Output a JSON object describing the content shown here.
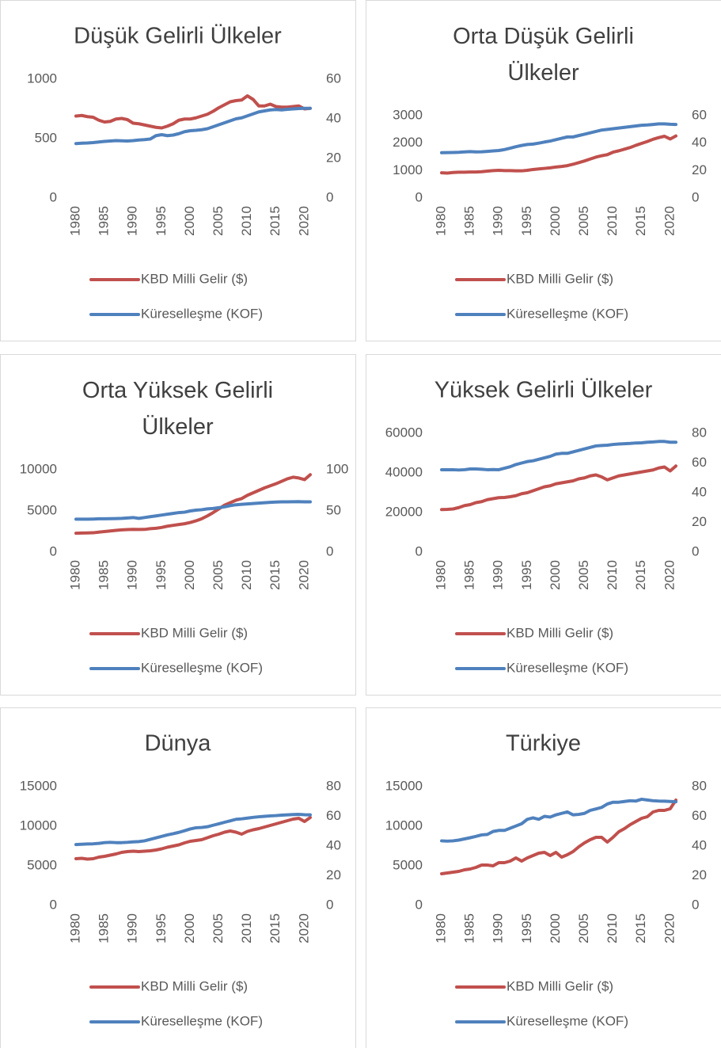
{
  "chart_data": [
    {
      "type": "line",
      "title": "Düşük Gelirli Ülkeler",
      "x": [
        1980,
        1981,
        1982,
        1983,
        1984,
        1985,
        1986,
        1987,
        1988,
        1989,
        1990,
        1991,
        1992,
        1993,
        1994,
        1995,
        1996,
        1997,
        1998,
        1999,
        2000,
        2001,
        2002,
        2003,
        2004,
        2005,
        2006,
        2007,
        2008,
        2009,
        2010,
        2011,
        2012,
        2013,
        2014,
        2015,
        2016,
        2017,
        2018,
        2019,
        2020,
        2021
      ],
      "xlim": [
        1980,
        2021
      ],
      "xticks": [
        1980,
        1985,
        1990,
        1995,
        2000,
        2005,
        2010,
        2015,
        2020
      ],
      "ylim": [
        0,
        1000
      ],
      "yticks": [
        0,
        500,
        1000
      ],
      "y2lim": [
        0,
        60
      ],
      "y2ticks": [
        0,
        20,
        40,
        60
      ],
      "series": [
        {
          "name": "KBD Milli Gelir ($)",
          "color": "#c0504d",
          "values": [
            690,
            695,
            685,
            680,
            655,
            640,
            645,
            665,
            670,
            660,
            630,
            625,
            615,
            605,
            595,
            590,
            605,
            625,
            655,
            665,
            665,
            675,
            690,
            705,
            730,
            760,
            785,
            810,
            820,
            825,
            860,
            830,
            775,
            775,
            790,
            770,
            765,
            765,
            770,
            775,
            750,
            755
          ]
        },
        {
          "name": "Küreselleşme (KOF)",
          "color": "#4f81bd",
          "axis": "y2",
          "values": [
            27.5,
            27.7,
            27.8,
            28,
            28.3,
            28.6,
            28.8,
            29,
            28.9,
            28.8,
            29,
            29.3,
            29.5,
            29.8,
            31.5,
            32,
            31.5,
            31.8,
            32.5,
            33.5,
            34,
            34.2,
            34.5,
            35,
            36,
            37,
            38,
            39,
            40,
            40.5,
            41.5,
            42.5,
            43.5,
            44,
            44.5,
            44.7,
            44.5,
            44.8,
            45,
            45.2,
            45.3,
            45.3
          ]
        }
      ]
    },
    {
      "type": "line",
      "title": "Orta Düşük Gelirli Ülkeler",
      "x": [
        1980,
        1981,
        1982,
        1983,
        1984,
        1985,
        1986,
        1987,
        1988,
        1989,
        1990,
        1991,
        1992,
        1993,
        1994,
        1995,
        1996,
        1997,
        1998,
        1999,
        2000,
        2001,
        2002,
        2003,
        2004,
        2005,
        2006,
        2007,
        2008,
        2009,
        2010,
        2011,
        2012,
        2013,
        2014,
        2015,
        2016,
        2017,
        2018,
        2019,
        2020,
        2021
      ],
      "xlim": [
        1980,
        2021
      ],
      "xticks": [
        1980,
        1985,
        1990,
        1995,
        2000,
        2005,
        2010,
        2015,
        2020
      ],
      "ylim": [
        0,
        3000
      ],
      "yticks": [
        0,
        1000,
        2000,
        3000
      ],
      "y2lim": [
        0,
        60
      ],
      "y2ticks": [
        0,
        20,
        40,
        60
      ],
      "series": [
        {
          "name": "KBD Milli Gelir ($)",
          "color": "#c0504d",
          "values": [
            920,
            910,
            930,
            940,
            940,
            950,
            950,
            960,
            980,
            1000,
            1010,
            1000,
            1000,
            990,
            990,
            1010,
            1040,
            1060,
            1080,
            1100,
            1130,
            1150,
            1180,
            1230,
            1290,
            1350,
            1420,
            1490,
            1540,
            1580,
            1670,
            1720,
            1780,
            1840,
            1920,
            1990,
            2060,
            2140,
            2200,
            2250,
            2150,
            2260
          ]
        },
        {
          "name": "Küreselleşme (KOF)",
          "color": "#4f81bd",
          "axis": "y2",
          "values": [
            33,
            33.1,
            33.2,
            33.3,
            33.6,
            33.8,
            33.6,
            33.7,
            34,
            34.3,
            34.6,
            35.3,
            36.3,
            37.4,
            38.3,
            39,
            39.3,
            40,
            40.8,
            41.5,
            42.5,
            43.5,
            44.5,
            44.5,
            45.5,
            46.5,
            47.5,
            48.5,
            49.5,
            50,
            50.5,
            51,
            51.5,
            52,
            52.5,
            53,
            53.2,
            53.6,
            54,
            54,
            53.7,
            53.6
          ]
        }
      ]
    },
    {
      "type": "line",
      "title": "Orta Yüksek Gelirli Ülkeler",
      "x": [
        1980,
        1981,
        1982,
        1983,
        1984,
        1985,
        1986,
        1987,
        1988,
        1989,
        1990,
        1991,
        1992,
        1993,
        1994,
        1995,
        1996,
        1997,
        1998,
        1999,
        2000,
        2001,
        2002,
        2003,
        2004,
        2005,
        2006,
        2007,
        2008,
        2009,
        2010,
        2011,
        2012,
        2013,
        2014,
        2015,
        2016,
        2017,
        2018,
        2019,
        2020,
        2021
      ],
      "xlim": [
        1980,
        2021
      ],
      "xticks": [
        1980,
        1985,
        1990,
        1995,
        2000,
        2005,
        2010,
        2015,
        2020
      ],
      "ylim": [
        0,
        10000
      ],
      "yticks": [
        0,
        5000,
        10000
      ],
      "y2lim": [
        0,
        100
      ],
      "y2ticks": [
        0,
        50,
        100
      ],
      "series": [
        {
          "name": "KBD Milli Gelir ($)",
          "color": "#c0504d",
          "values": [
            2300,
            2320,
            2330,
            2350,
            2430,
            2500,
            2570,
            2640,
            2700,
            2740,
            2760,
            2750,
            2760,
            2850,
            2900,
            3000,
            3150,
            3250,
            3350,
            3450,
            3600,
            3800,
            4050,
            4400,
            4800,
            5250,
            5700,
            6000,
            6300,
            6500,
            6900,
            7200,
            7500,
            7800,
            8050,
            8300,
            8600,
            8900,
            9100,
            9000,
            8800,
            9400
          ]
        },
        {
          "name": "Küreselleşme (KOF)",
          "color": "#4f81bd",
          "axis": "y2",
          "values": [
            40,
            40,
            40,
            40.2,
            40.5,
            40.5,
            40.6,
            40.8,
            41,
            41.5,
            42,
            41,
            42,
            43,
            44,
            45,
            46,
            47,
            48,
            48.5,
            50,
            51,
            51.5,
            52.5,
            53,
            54,
            55,
            56.5,
            57.5,
            58,
            58.5,
            59,
            59.5,
            60,
            60.5,
            60.8,
            61,
            61,
            61.2,
            61.3,
            61,
            61
          ]
        }
      ]
    },
    {
      "type": "line",
      "title": "Yüksek Gelirli Ülkeler",
      "x": [
        1980,
        1981,
        1982,
        1983,
        1984,
        1985,
        1986,
        1987,
        1988,
        1989,
        1990,
        1991,
        1992,
        1993,
        1994,
        1995,
        1996,
        1997,
        1998,
        1999,
        2000,
        2001,
        2002,
        2003,
        2004,
        2005,
        2006,
        2007,
        2008,
        2009,
        2010,
        2011,
        2012,
        2013,
        2014,
        2015,
        2016,
        2017,
        2018,
        2019,
        2020,
        2021
      ],
      "xlim": [
        1980,
        2021
      ],
      "xticks": [
        1980,
        1985,
        1990,
        1995,
        2000,
        2005,
        2010,
        2015,
        2020
      ],
      "ylim": [
        0,
        60000
      ],
      "yticks": [
        0,
        20000,
        40000,
        60000
      ],
      "y2lim": [
        0,
        80
      ],
      "y2ticks": [
        0,
        20,
        40,
        60,
        80
      ],
      "series": [
        {
          "name": "KBD Milli Gelir ($)",
          "color": "#c0504d",
          "values": [
            21500,
            21600,
            21800,
            22500,
            23500,
            24000,
            25000,
            25500,
            26500,
            27000,
            27500,
            27600,
            28000,
            28500,
            29500,
            30000,
            31000,
            32000,
            33000,
            33500,
            34500,
            35000,
            35500,
            36000,
            37000,
            37500,
            38500,
            39000,
            38000,
            36500,
            37500,
            38500,
            39000,
            39500,
            40000,
            40500,
            41000,
            41500,
            42500,
            43000,
            41000,
            43500
          ]
        },
        {
          "name": "Küreselleşme (KOF)",
          "color": "#4f81bd",
          "axis": "y2",
          "values": [
            55.5,
            55.5,
            55.5,
            55.3,
            55.5,
            56,
            56,
            55.8,
            55.5,
            55.6,
            55.5,
            56.5,
            57.5,
            59,
            60,
            61,
            61.5,
            62.5,
            63.5,
            64.5,
            66,
            66.5,
            66.5,
            67.5,
            68.5,
            69.5,
            70.5,
            71.5,
            71.8,
            72,
            72.5,
            72.8,
            73,
            73.2,
            73.5,
            73.6,
            74,
            74.2,
            74.5,
            74.5,
            74,
            74
          ]
        }
      ]
    },
    {
      "type": "line",
      "title": "Dünya",
      "x": [
        1980,
        1981,
        1982,
        1983,
        1984,
        1985,
        1986,
        1987,
        1988,
        1989,
        1990,
        1991,
        1992,
        1993,
        1994,
        1995,
        1996,
        1997,
        1998,
        1999,
        2000,
        2001,
        2002,
        2003,
        2004,
        2005,
        2006,
        2007,
        2008,
        2009,
        2010,
        2011,
        2012,
        2013,
        2014,
        2015,
        2016,
        2017,
        2018,
        2019,
        2020,
        2021
      ],
      "xlim": [
        1980,
        2021
      ],
      "xticks": [
        1980,
        1985,
        1990,
        1995,
        2000,
        2005,
        2010,
        2015,
        2020
      ],
      "ylim": [
        0,
        15000
      ],
      "yticks": [
        0,
        5000,
        10000,
        15000
      ],
      "y2lim": [
        0,
        80
      ],
      "y2ticks": [
        0,
        20,
        40,
        60,
        80
      ],
      "series": [
        {
          "name": "KBD Milli Gelir ($)",
          "color": "#c0504d",
          "values": [
            5900,
            5950,
            5850,
            5900,
            6100,
            6200,
            6350,
            6500,
            6700,
            6800,
            6850,
            6800,
            6850,
            6900,
            7000,
            7150,
            7350,
            7500,
            7650,
            7900,
            8100,
            8200,
            8300,
            8550,
            8800,
            9000,
            9250,
            9400,
            9250,
            9000,
            9350,
            9550,
            9700,
            9900,
            10100,
            10300,
            10500,
            10700,
            10900,
            11000,
            10600,
            11100
          ]
        },
        {
          "name": "Küreselleşme (KOF)",
          "color": "#4f81bd",
          "axis": "y2",
          "values": [
            41,
            41.2,
            41.4,
            41.5,
            41.8,
            42.3,
            42.5,
            42.3,
            42.3,
            42.5,
            42.8,
            43,
            43.5,
            44.5,
            45.5,
            46.5,
            47.5,
            48.3,
            49.2,
            50.3,
            51.5,
            52.3,
            52.5,
            53,
            54,
            55,
            56,
            57,
            58,
            58.3,
            58.8,
            59.3,
            59.7,
            60,
            60.3,
            60.5,
            60.8,
            61,
            61.2,
            61.3,
            61.1,
            61
          ]
        }
      ]
    },
    {
      "type": "line",
      "title": "Türkiye",
      "x": [
        1980,
        1981,
        1982,
        1983,
        1984,
        1985,
        1986,
        1987,
        1988,
        1989,
        1990,
        1991,
        1992,
        1993,
        1994,
        1995,
        1996,
        1997,
        1998,
        1999,
        2000,
        2001,
        2002,
        2003,
        2004,
        2005,
        2006,
        2007,
        2008,
        2009,
        2010,
        2011,
        2012,
        2013,
        2014,
        2015,
        2016,
        2017,
        2018,
        2019,
        2020,
        2021
      ],
      "xlim": [
        1980,
        2021
      ],
      "xticks": [
        1980,
        1985,
        1990,
        1995,
        2000,
        2005,
        2010,
        2015,
        2020
      ],
      "ylim": [
        0,
        15000
      ],
      "yticks": [
        0,
        5000,
        10000,
        15000
      ],
      "y2lim": [
        0,
        80
      ],
      "y2ticks": [
        0,
        20,
        40,
        60,
        80
      ],
      "series": [
        {
          "name": "KBD Milli Gelir ($)",
          "color": "#c0504d",
          "values": [
            4000,
            4100,
            4200,
            4300,
            4500,
            4600,
            4800,
            5100,
            5100,
            5000,
            5400,
            5400,
            5600,
            6000,
            5600,
            6000,
            6300,
            6600,
            6700,
            6300,
            6700,
            6100,
            6400,
            6800,
            7400,
            7900,
            8300,
            8600,
            8600,
            8000,
            8600,
            9300,
            9700,
            10200,
            10600,
            11000,
            11200,
            11800,
            12000,
            12000,
            12200,
            13300
          ]
        },
        {
          "name": "Küreselleşme (KOF)",
          "color": "#4f81bd",
          "axis": "y2",
          "values": [
            43.5,
            43.3,
            43.5,
            44,
            44.8,
            45.6,
            46.5,
            47.5,
            47.8,
            49.8,
            50.5,
            50.5,
            52,
            53.5,
            55,
            58,
            59,
            58,
            60,
            59.5,
            61,
            62,
            63,
            61,
            61.3,
            62,
            64,
            65,
            66,
            68.3,
            69.5,
            69.5,
            70,
            70.5,
            70.3,
            71.5,
            71,
            70.5,
            70.3,
            70.2,
            70,
            69.8
          ]
        }
      ]
    }
  ]
}
